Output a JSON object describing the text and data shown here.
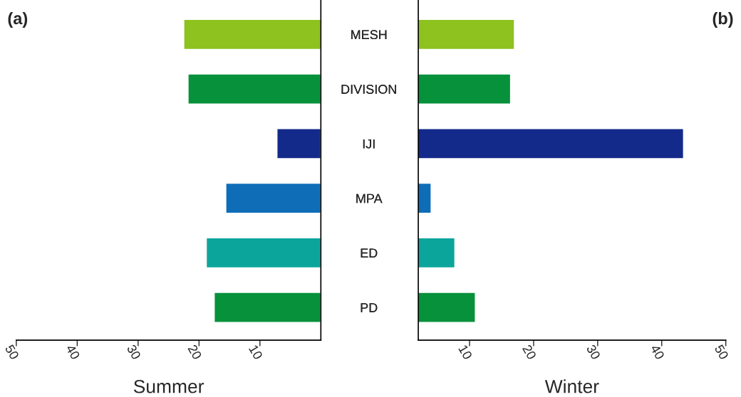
{
  "chart_data": [
    {
      "type": "bar",
      "orientation": "horizontal",
      "categories": [
        "MESH",
        "DIVISION",
        "IJI",
        "MPA",
        "ED",
        "PD"
      ],
      "values": [
        22.5,
        21.8,
        7.2,
        15.6,
        18.8,
        17.5
      ],
      "colors": [
        "#8dc21f",
        "#07913a",
        "#132a8a",
        "#0f6db8",
        "#0ca59c",
        "#07913a"
      ],
      "xlim": [
        50,
        0
      ],
      "xticks": [
        50,
        40,
        30,
        20,
        10
      ],
      "xlabel": "Summer",
      "annotations": [
        "(a)"
      ],
      "grid": false,
      "legend": false
    },
    {
      "type": "bar",
      "orientation": "horizontal",
      "categories": [
        "MESH",
        "DIVISION",
        "IJI",
        "MPA",
        "ED",
        "PD"
      ],
      "values": [
        17.0,
        16.4,
        43.4,
        4.0,
        7.7,
        10.9
      ],
      "colors": [
        "#8dc21f",
        "#07913a",
        "#132a8a",
        "#0f6db8",
        "#0ca59c",
        "#07913a"
      ],
      "xlim": [
        2,
        50
      ],
      "xticks": [
        10,
        20,
        30,
        40,
        50
      ],
      "xlabel": "Winter",
      "annotations": [
        "(b)"
      ],
      "grid": false,
      "legend": false
    }
  ]
}
